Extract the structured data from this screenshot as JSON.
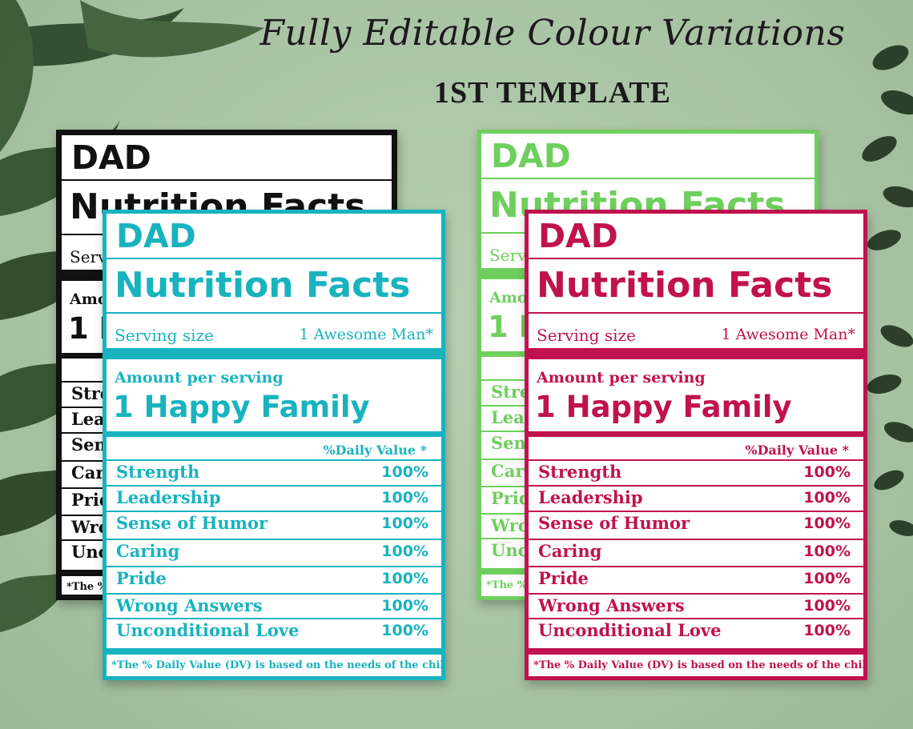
{
  "header": {
    "title": "Fully Editable Colour Variations",
    "subtitle": "1ST TEMPLATE"
  },
  "label": {
    "name": "DAD",
    "heading": "Nutrition Facts",
    "serving_label": "Serving size",
    "serving_value": "1 Awesome Man*",
    "amount_label": "Amount per serving",
    "amount_value": "1 Happy Family",
    "dv_header": "%Daily Value *",
    "rows": [
      {
        "name": "Strength",
        "value": "100%"
      },
      {
        "name": "Leadership",
        "value": "100%"
      },
      {
        "name": "Sense of Humor",
        "value": "100%"
      },
      {
        "name": "Caring",
        "value": "100%"
      },
      {
        "name": "Pride",
        "value": "100%"
      },
      {
        "name": "Wrong Answers",
        "value": "100%"
      },
      {
        "name": "Unconditional Love",
        "value": "100%"
      }
    ],
    "footnote": "*The % Daily Value (DV) is based on the needs of the child."
  },
  "variants": {
    "black": "#111111",
    "green": "#6fcf5e",
    "teal": "#18b3bf",
    "magenta": "#c0124f"
  },
  "background": "#b0c9aa",
  "leaf_color": "#2f4a2a"
}
